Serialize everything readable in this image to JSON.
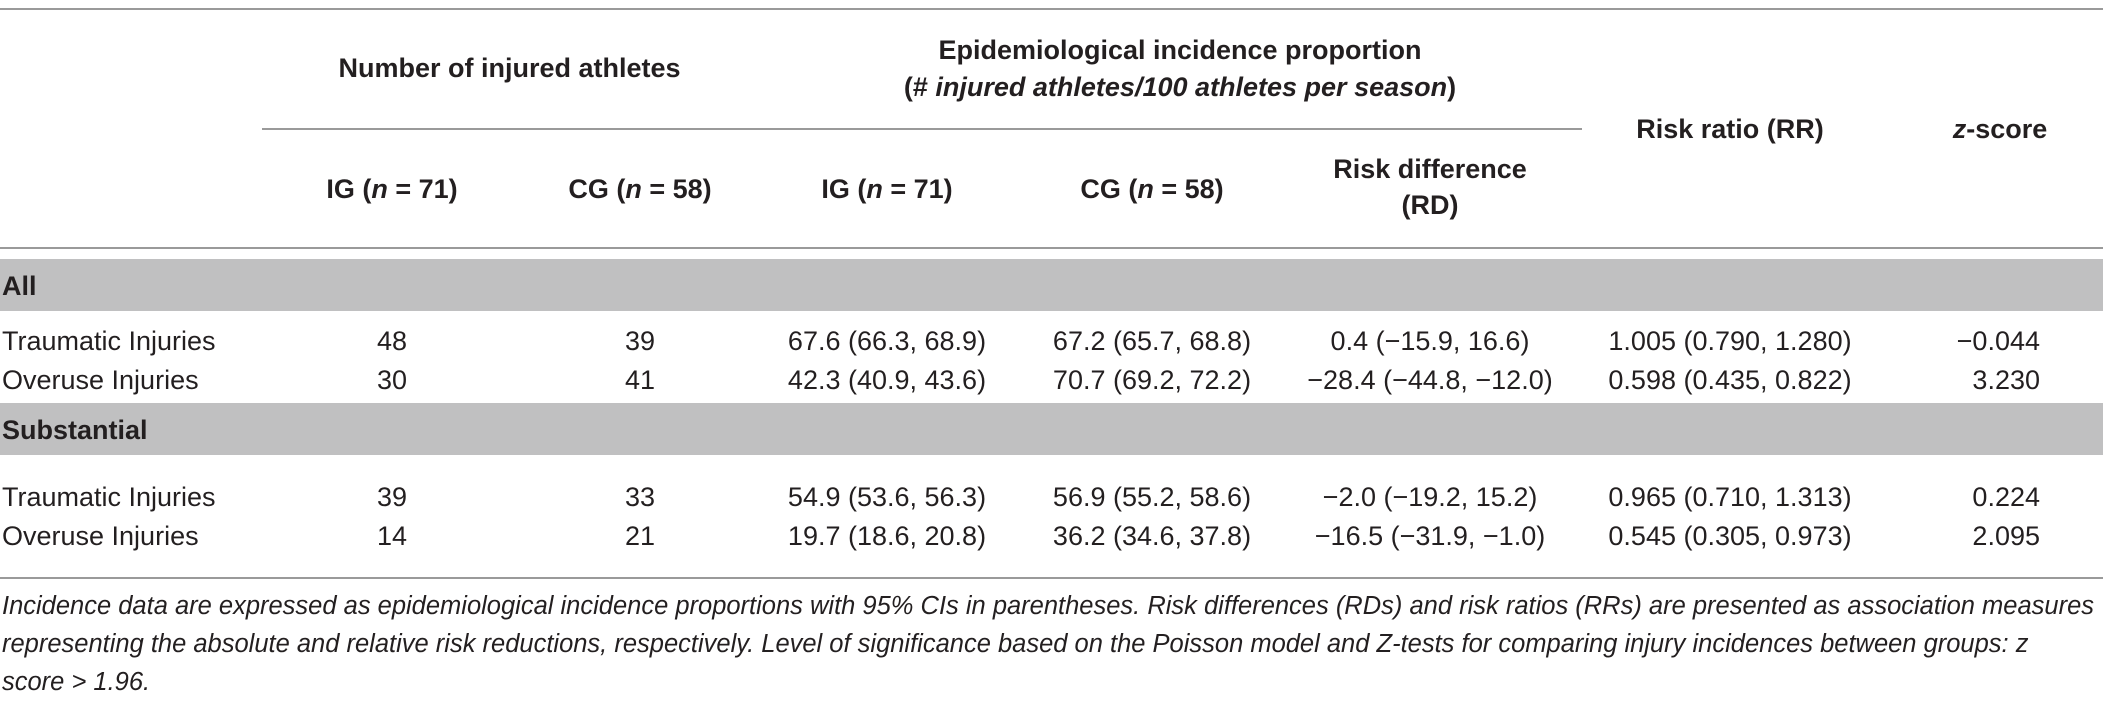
{
  "header": {
    "group1": "Number of injured athletes",
    "group2_line1": "Epidemiological incidence proportion",
    "group2_line2_open": "(#",
    "group2_line2_italic": "injured athletes/100 athletes per season",
    "group2_line2_close": ")",
    "risk_ratio": "Risk ratio (RR)",
    "zscore_italic": "z",
    "zscore_rest": "-score",
    "ig_prefix": "IG (",
    "n_italic": "n",
    "ig_suffix": " = 71)",
    "cg_prefix": "CG (",
    "cg_suffix": " = 58)",
    "rd_line1": "Risk difference",
    "rd_line2": "(RD)"
  },
  "sections": {
    "all": "All",
    "substantial": "Substantial"
  },
  "rows": [
    {
      "label": "Traumatic Injuries",
      "ig": "48",
      "cg": "39",
      "ig_ip": "67.6 (66.3, 68.9)",
      "cg_ip": "67.2 (65.7, 68.8)",
      "rd": "0.4 (−15.9, 16.6)",
      "rr": "1.005 (0.790, 1.280)",
      "z": "−0.044"
    },
    {
      "label": "Overuse Injuries",
      "ig": "30",
      "cg": "41",
      "ig_ip": "42.3 (40.9, 43.6)",
      "cg_ip": "70.7 (69.2, 72.2)",
      "rd": "−28.4 (−44.8, −12.0)",
      "rr": "0.598 (0.435, 0.822)",
      "z": "3.230"
    },
    {
      "label": "Traumatic Injuries",
      "ig": "39",
      "cg": "33",
      "ig_ip": "54.9 (53.6, 56.3)",
      "cg_ip": "56.9 (55.2, 58.6)",
      "rd": "−2.0 (−19.2, 15.2)",
      "rr": "0.965 (0.710, 1.313)",
      "z": "0.224"
    },
    {
      "label": "Overuse Injuries",
      "ig": "14",
      "cg": "21",
      "ig_ip": "19.7 (18.6, 20.8)",
      "cg_ip": "36.2 (34.6, 37.8)",
      "rd": "−16.5 (−31.9, −1.0)",
      "rr": "0.545 (0.305, 0.973)",
      "z": "2.095"
    }
  ],
  "footnote": "Incidence data are expressed as epidemiological incidence proportions with 95% CIs in parentheses. Risk differences (RDs) and risk ratios (RRs) are presented as association measures representing the absolute and relative risk reductions, respectively. Level of significance based on the Poisson model and Z-tests for comparing injury incidences between groups: z score > 1.96."
}
